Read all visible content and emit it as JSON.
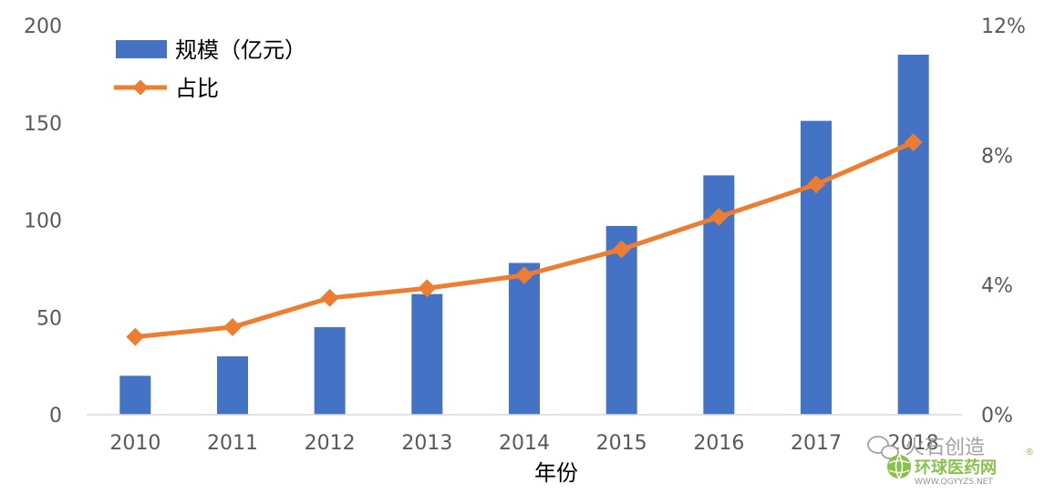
{
  "chart_data": {
    "type": "bar",
    "categories": [
      "2010",
      "2011",
      "2012",
      "2013",
      "2014",
      "2015",
      "2016",
      "2017",
      "2018"
    ],
    "series": [
      {
        "name": "规模（亿元）",
        "type": "bar",
        "axis": "left",
        "color": "#4472C4",
        "values": [
          20,
          30,
          45,
          62,
          78,
          97,
          123,
          151,
          185
        ]
      },
      {
        "name": "占比",
        "type": "line",
        "axis": "right",
        "color": "#ED7D31",
        "values": [
          2.4,
          2.7,
          3.6,
          3.9,
          4.3,
          5.1,
          6.1,
          7.1,
          8.4
        ]
      }
    ],
    "xlabel": "年份",
    "ylim": [
      0,
      200
    ],
    "yticks": [
      "0",
      "50",
      "100",
      "150",
      "200"
    ],
    "y2lim": [
      0,
      12
    ],
    "y2ticks": [
      "0%",
      "4%",
      "8%",
      "12%"
    ],
    "legend_position": "top-left",
    "grid": false
  },
  "watermark": {
    "wechat_text": "火石创造",
    "site_name": "环球医药网",
    "site_url": "WWW.QGYYZS.NET",
    "registered": "®",
    "logo_color": "#7dbb3a"
  }
}
